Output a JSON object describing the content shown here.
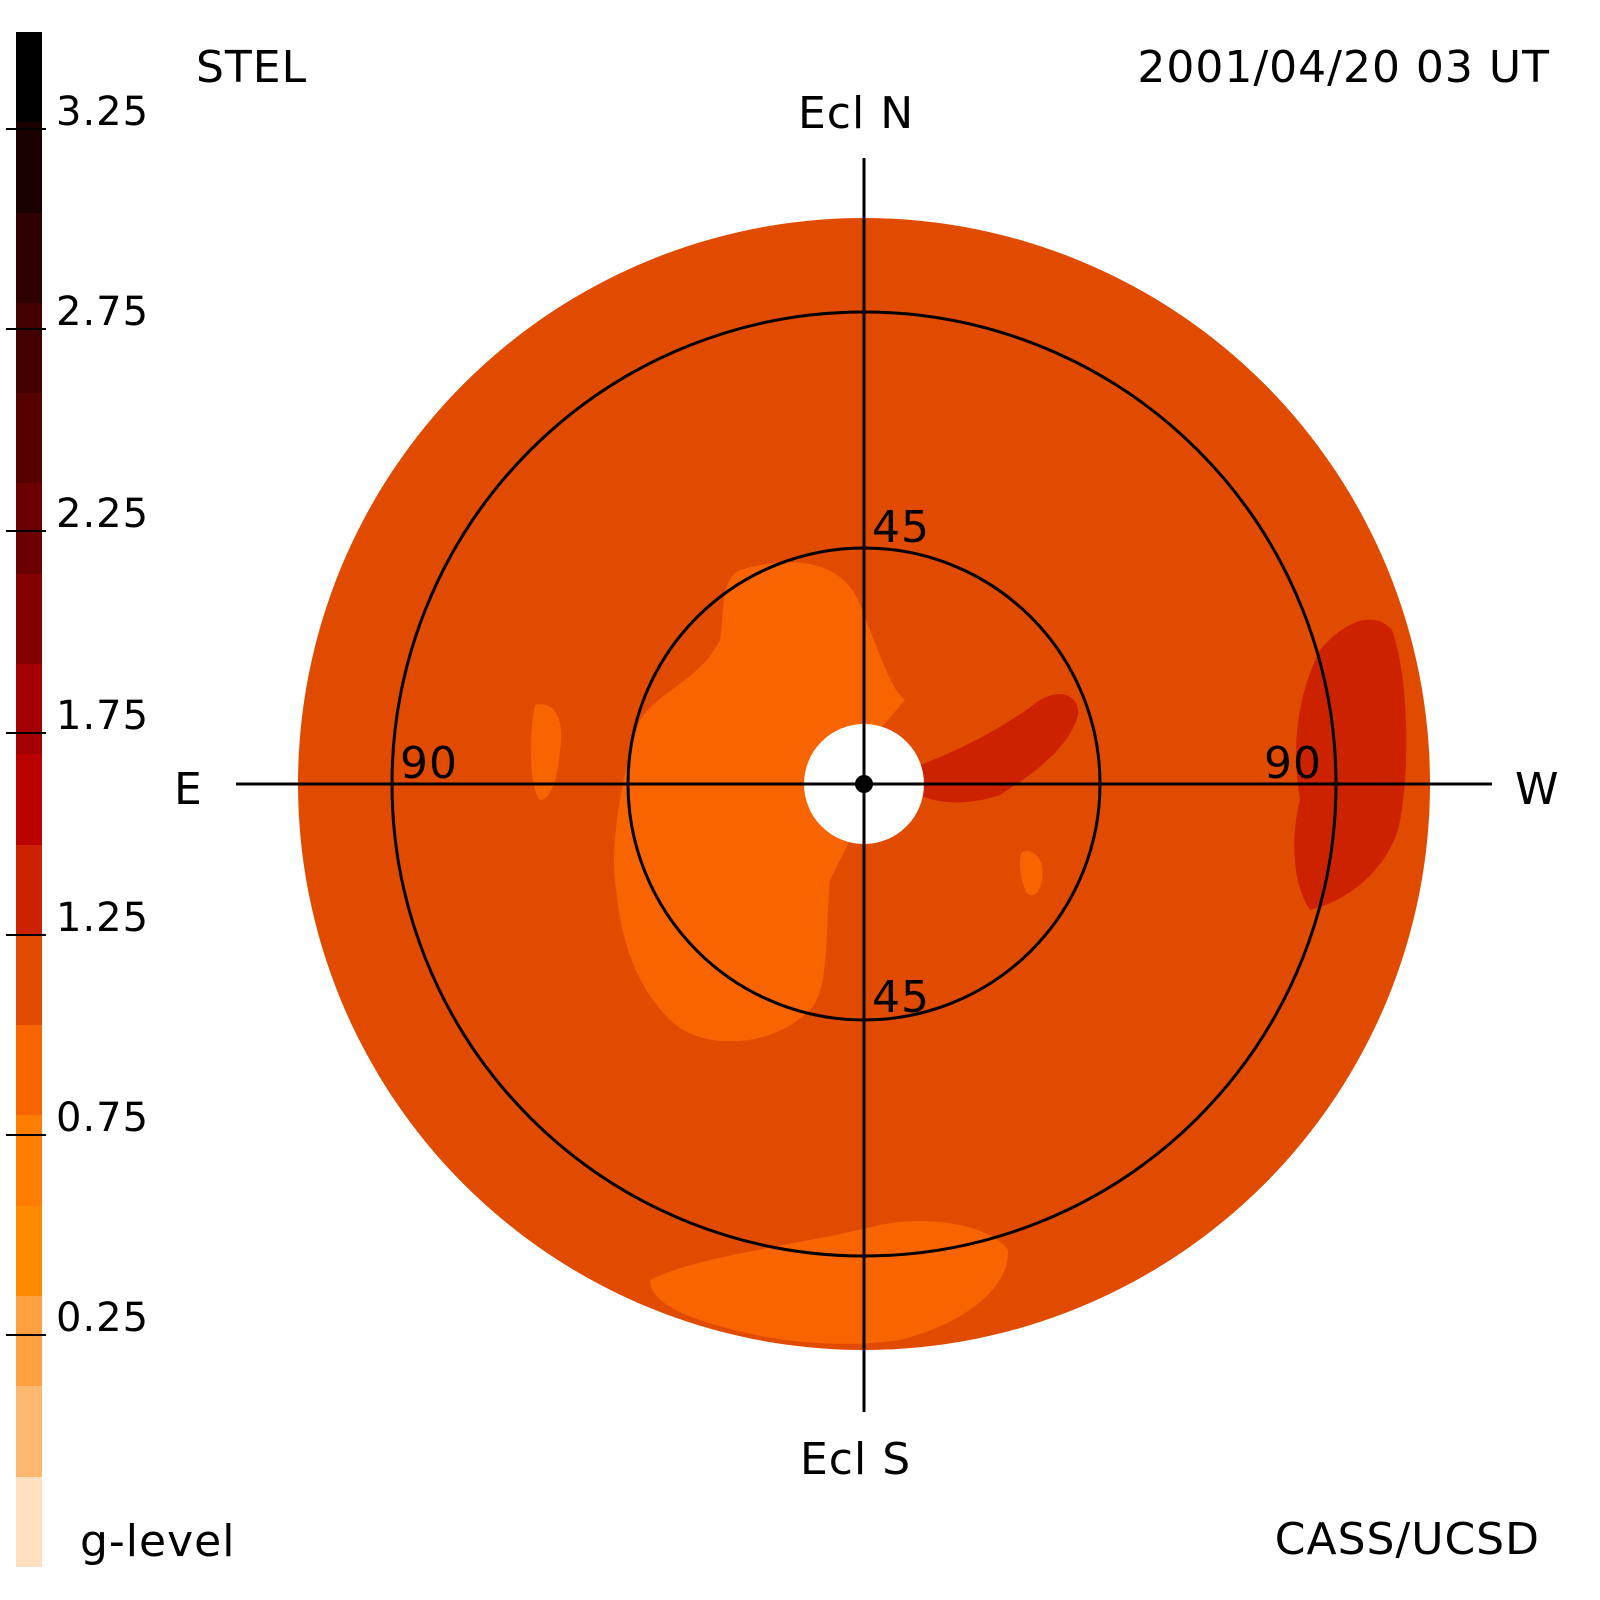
{
  "header": {
    "instrument": "STEL",
    "datetime": "2001/04/20 03 UT"
  },
  "footer": {
    "colorbar_label": "g-level",
    "credit": "CASS/UCSD"
  },
  "directions": {
    "north": "Ecl N",
    "south": "Ecl S",
    "east": "E",
    "west": "W"
  },
  "ring_labels": {
    "inner_top": "45",
    "inner_bottom": "45",
    "outer_left": "90",
    "outer_right": "90"
  },
  "colorbar": {
    "tick_labels": [
      "3.25",
      "2.75",
      "2.25",
      "1.75",
      "1.25",
      "0.75",
      "0.25"
    ],
    "colors_top_to_bottom": [
      "#000000",
      "#1a0000",
      "#2e0000",
      "#420000",
      "#570000",
      "#6b0000",
      "#850000",
      "#a30000",
      "#bb0000",
      "#cc2200",
      "#e04b00",
      "#f86400",
      "#ff7d00",
      "#ff8a00",
      "#ffa040",
      "#ffb870",
      "#ffe0c0"
    ]
  },
  "map": {
    "colors": {
      "background": "#e04b00",
      "low": "#f86400",
      "high": "#cc2200",
      "occulter": "#ffffff",
      "lines": "#000000"
    }
  }
}
